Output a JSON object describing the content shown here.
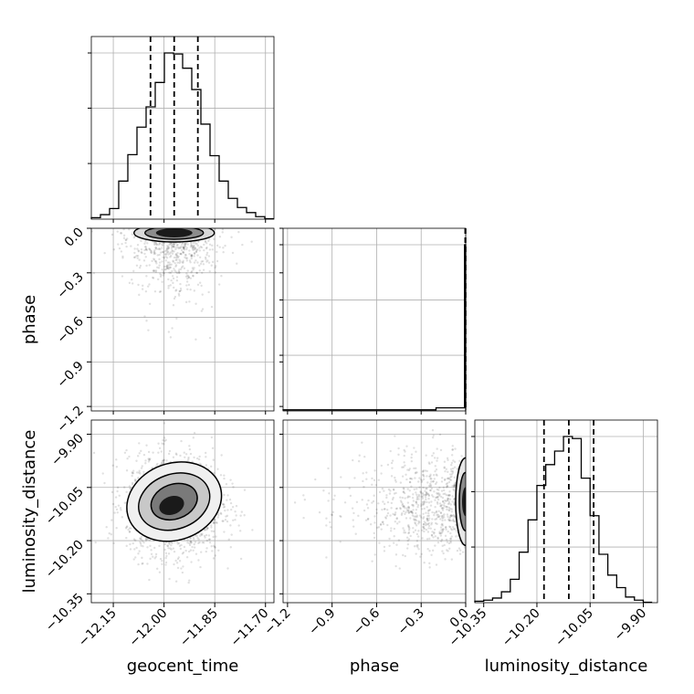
{
  "chart_data": {
    "type": "corner",
    "parameters": [
      "geocent_time",
      "phase",
      "luminosity_distance"
    ],
    "axis_labels": {
      "x": [
        "geocent_time",
        "phase",
        "luminosity_distance"
      ],
      "y": [
        "",
        "phase",
        "luminosity_distance"
      ]
    },
    "ranges": {
      "geocent_time": [
        -12.215,
        -11.675
      ],
      "phase": [
        -1.23,
        0.0
      ],
      "luminosity_distance": [
        -10.375,
        -9.86
      ]
    },
    "ticks": {
      "geocent_time": [
        -12.15,
        -12.0,
        -11.85,
        -11.7
      ],
      "phase": [
        -1.2,
        -0.9,
        -0.6,
        -0.3,
        0.0
      ],
      "luminosity_distance": [
        -10.35,
        -10.2,
        -10.05,
        -9.9
      ]
    },
    "tick_labels": {
      "geocent_time": [
        "−12.15",
        "−12.00",
        "−11.85",
        "−11.70"
      ],
      "phase_x": [
        "−1.2",
        "−0.9",
        "−0.6",
        "−0.3",
        "0.0"
      ],
      "phase_y": [
        "0.0",
        "−0.3",
        "−0.6",
        "−0.9",
        "−1.2"
      ],
      "luminosity_distance": [
        "−10.35",
        "−10.20",
        "−10.05",
        "−9.90"
      ]
    },
    "grid": true,
    "histograms": {
      "geocent_time": {
        "edges": [
          -12.215,
          -12.188,
          -12.161,
          -12.134,
          -12.107,
          -12.08,
          -12.053,
          -12.026,
          -11.999,
          -11.972,
          -11.945,
          -11.918,
          -11.891,
          -11.864,
          -11.837,
          -11.81,
          -11.783,
          -11.756,
          -11.729,
          -11.702,
          -11.675
        ],
        "counts": [
          1,
          4,
          10,
          37,
          63,
          90,
          110,
          134,
          163,
          162,
          148,
          127,
          93,
          62,
          37,
          20,
          11,
          6,
          2,
          0
        ],
        "quantiles": [
          -12.04,
          -11.97,
          -11.9
        ]
      },
      "phase": {
        "edges": [
          -1.23,
          -0.2,
          -0.008,
          0.0
        ],
        "counts": [
          1,
          4,
          255
        ],
        "quantiles": [
          -0.003,
          -0.002,
          -0.001
        ]
      },
      "luminosity_distance": {
        "edges": [
          -10.375,
          -10.35,
          -10.325,
          -10.3,
          -10.275,
          -10.25,
          -10.225,
          -10.2,
          -10.175,
          -10.15,
          -10.125,
          -10.1,
          -10.075,
          -10.05,
          -10.025,
          -10.0,
          -9.975,
          -9.95,
          -9.925,
          -9.9,
          -9.875
        ],
        "counts": [
          1,
          2,
          4,
          10,
          22,
          48,
          79,
          112,
          132,
          145,
          159,
          157,
          119,
          83,
          46,
          26,
          14,
          5,
          2,
          0
        ],
        "quantiles": [
          -10.18,
          -10.11,
          -10.04
        ]
      }
    },
    "scatter": {
      "phase_vs_geocent_time": {
        "x_center": -11.97,
        "x_sd": 0.07,
        "y_center": -0.12,
        "y_sd": 0.13,
        "n": 700
      },
      "luminosity_distance_vs_geocent_time": {
        "x_center": -11.97,
        "x_sd": 0.07,
        "y_center": -10.1,
        "y_sd": 0.07,
        "n": 1800
      },
      "luminosity_distance_vs_phase": {
        "x_center": -0.15,
        "x_sd": 0.25,
        "y_center": -10.1,
        "y_sd": 0.07,
        "n": 800
      }
    },
    "contour_levels": [
      0.39,
      0.86,
      0.99
    ]
  }
}
